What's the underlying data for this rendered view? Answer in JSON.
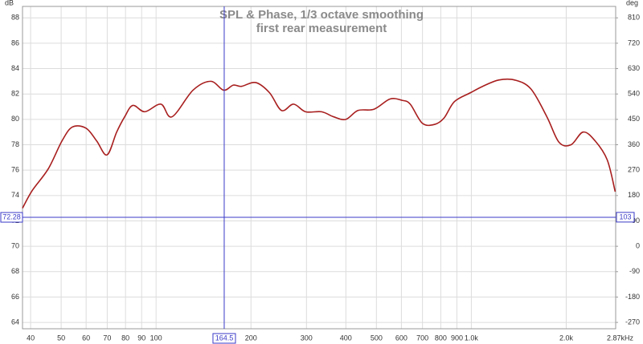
{
  "chart_data": {
    "type": "line",
    "title": "SPL & Phase, 1/3 octave smoothing",
    "subtitle": "first rear measurement",
    "ylabel": "dB",
    "y2label": "deg",
    "xscale": "log",
    "grid": true,
    "x": [
      37.7,
      40.5,
      45.5,
      50.3,
      54.3,
      60.0,
      64.8,
      69.9,
      75.0,
      79.5,
      84.4,
      92.1,
      103.6,
      112.3,
      131,
      149,
      163.8,
      175.8,
      186.4,
      207,
      229,
      250,
      273,
      298,
      335,
      366,
      400,
      437,
      491,
      552,
      603,
      640,
      699,
      764,
      819,
      884,
      994,
      1086,
      1221,
      1373,
      1545,
      1737,
      1897,
      2072,
      2263,
      2471,
      2699,
      2860
    ],
    "series": [
      {
        "name": "SPL",
        "color": "#a81e1e",
        "values": [
          73.0,
          74.4,
          76.1,
          78.3,
          79.4,
          79.3,
          78.3,
          77.2,
          79.0,
          80.2,
          81.1,
          80.6,
          81.2,
          80.2,
          82.3,
          83.0,
          82.3,
          82.7,
          82.6,
          82.9,
          82.1,
          80.7,
          81.2,
          80.6,
          80.6,
          80.2,
          80.0,
          80.7,
          80.8,
          81.6,
          81.5,
          81.2,
          79.7,
          79.6,
          80.1,
          81.4,
          82.1,
          82.6,
          83.1,
          83.1,
          82.4,
          80.2,
          78.2,
          78.0,
          79.0,
          78.3,
          76.8,
          74.3
        ]
      }
    ],
    "xlim": [
      37.7,
      2870
    ],
    "xticks": [
      40,
      50,
      60,
      70,
      80,
      90,
      100,
      200,
      300,
      400,
      500,
      600,
      700,
      800,
      900,
      {
        "value": 1000,
        "label": "1.0k"
      },
      {
        "value": 2000,
        "label": "2.0k"
      },
      {
        "value": 2870,
        "label": "2.87kHz"
      }
    ],
    "ylim": [
      63.5,
      88.9
    ],
    "yticks": [
      64,
      66,
      68,
      70,
      72,
      74,
      76,
      78,
      80,
      82,
      84,
      86,
      88
    ],
    "y2lim": [
      -292.5,
      850.5
    ],
    "y2ticks": [
      -270,
      -180,
      -90,
      0,
      90,
      180,
      270,
      360,
      450,
      540,
      630,
      720,
      810
    ],
    "cursor": {
      "x": 164.5,
      "y": 72.28,
      "y2": 103,
      "color": "#3a3ac8"
    }
  }
}
